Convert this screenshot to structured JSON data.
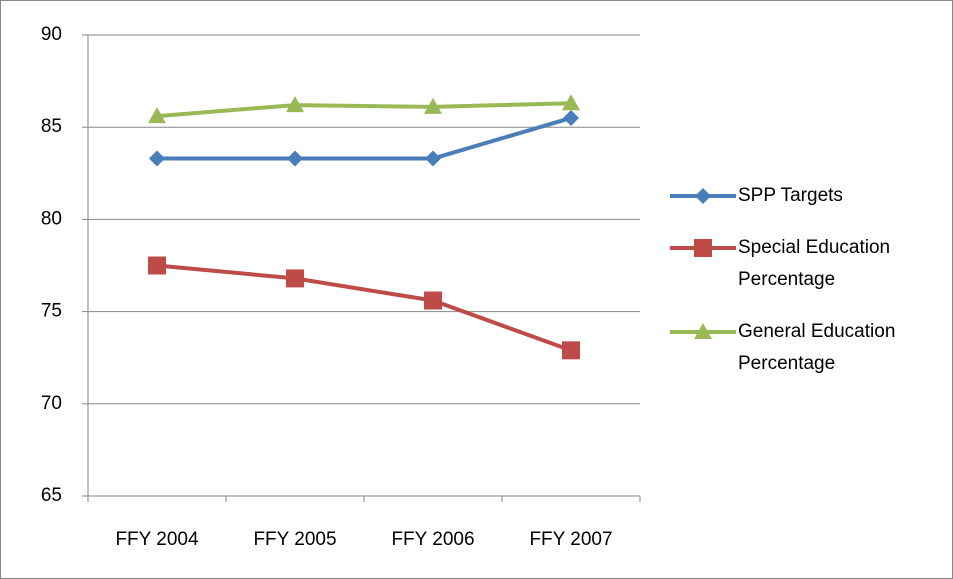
{
  "chart_data": {
    "type": "line",
    "categories": [
      "FFY 2004",
      "FFY 2005",
      "FFY 2006",
      "FFY 2007"
    ],
    "series": [
      {
        "name": "SPP Targets",
        "color": "#4a7ebb",
        "marker": "diamond",
        "values": [
          83.3,
          83.3,
          83.3,
          85.5
        ]
      },
      {
        "name": "Special Education Percentage",
        "color": "#be4b48",
        "marker": "square",
        "values": [
          77.5,
          76.8,
          75.6,
          72.9
        ]
      },
      {
        "name": "General Education Percentage",
        "color": "#98b954",
        "marker": "triangle",
        "values": [
          85.6,
          86.2,
          86.1,
          86.3
        ]
      }
    ],
    "ylim": [
      65,
      90
    ],
    "yticks": [
      65,
      70,
      75,
      80,
      85,
      90
    ],
    "grid": true,
    "legend": "right"
  }
}
